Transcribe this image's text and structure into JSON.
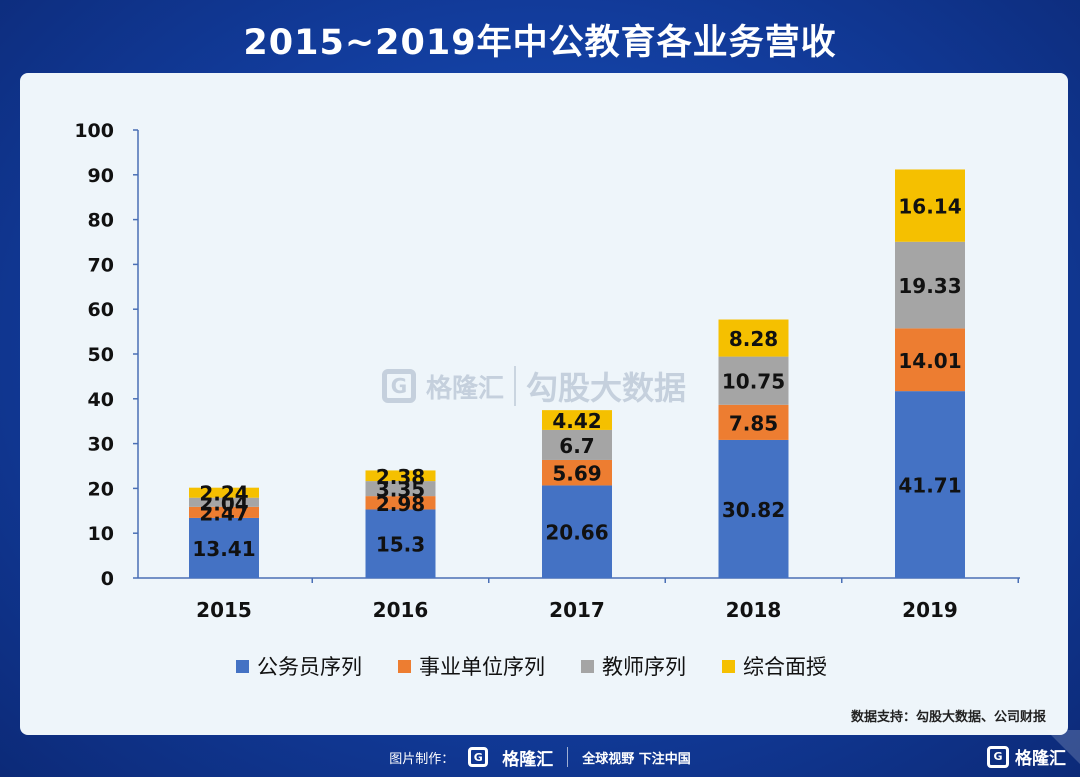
{
  "title": "2015~2019年中公教育各业务营收",
  "colors": {
    "civil_servant": "#4472c4",
    "public_institution": "#ed7d31",
    "teacher": "#a5a5a5",
    "interview": "#f5c000",
    "background": "#123c9c",
    "panel": "#eef5fa"
  },
  "chart_data": {
    "type": "bar",
    "stacked": true,
    "title": "",
    "xlabel": "",
    "ylabel": "",
    "ylim": [
      0,
      100
    ],
    "yticks": [
      0,
      10,
      20,
      30,
      40,
      50,
      60,
      70,
      80,
      90,
      100
    ],
    "categories": [
      "2015",
      "2016",
      "2017",
      "2018",
      "2019"
    ],
    "series": [
      {
        "name": "公务员序列",
        "color": "#4472c4",
        "label_color": "#111111",
        "values": [
          13.41,
          15.3,
          20.66,
          30.82,
          41.71
        ]
      },
      {
        "name": "事业单位序列",
        "color": "#ed7d31",
        "label_color": "#111111",
        "values": [
          2.47,
          2.98,
          5.69,
          7.85,
          14.01
        ]
      },
      {
        "name": "教师序列",
        "color": "#a5a5a5",
        "label_color": "#111111",
        "values": [
          2.04,
          3.35,
          6.7,
          10.75,
          19.33
        ]
      },
      {
        "name": "综合面授",
        "color": "#f5c000",
        "label_color": "#111111",
        "values": [
          2.24,
          2.38,
          4.42,
          8.28,
          16.14
        ]
      }
    ],
    "data_labels": [
      [
        "13.41",
        "15.3",
        "20.66",
        "30.82",
        "41.71"
      ],
      [
        "2.47",
        "2.98",
        "5.69",
        "7.85",
        "14.01"
      ],
      [
        "2.04",
        "3.35",
        "6.7",
        "10.75",
        "19.33"
      ],
      [
        "2.24",
        "2.38",
        "4.42",
        "8.28",
        "16.14"
      ]
    ],
    "grid": false,
    "legend_position": "bottom"
  },
  "watermark": {
    "brand": "格隆汇",
    "text": "勾股大数据"
  },
  "source": "数据支持：勾股大数据、公司财报",
  "footer": {
    "made_by": "图片制作：",
    "brand": "格隆汇",
    "slogan": "全球视野 下注中国",
    "corner_brand": "格隆汇"
  }
}
